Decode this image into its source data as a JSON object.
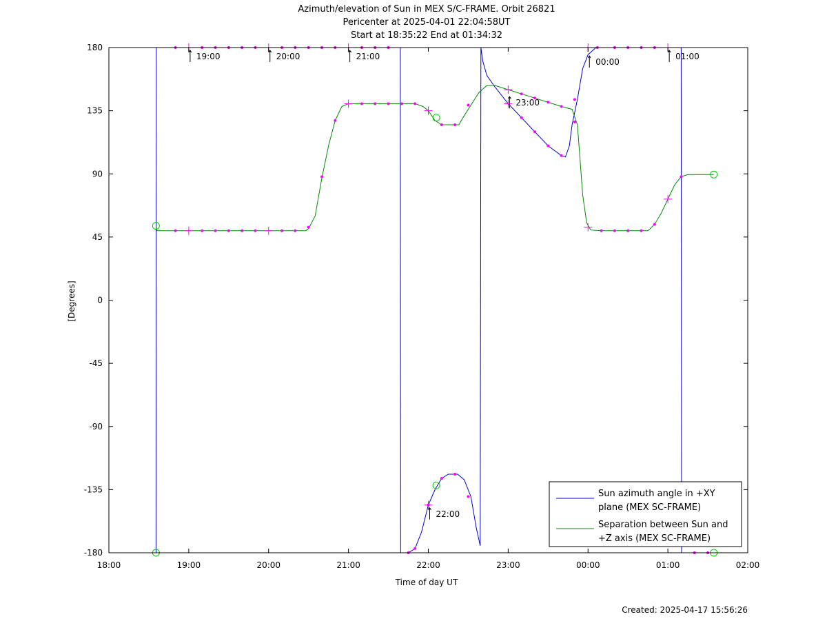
{
  "header": {
    "title_line1": "Azimuth/elevation of Sun in MEX S/C-FRAME.  Orbit 26821",
    "title_line2": "Pericenter at 2025-04-01 22:04:58UT",
    "title_line3": "Start at 18:35:22 End at 01:34:32"
  },
  "footer": {
    "created": "Created: 2025-04-17 15:56:26"
  },
  "chart_data": {
    "type": "line",
    "title": "Azimuth/elevation of Sun in MEX S/C-FRAME.  Orbit 26821",
    "xlabel": "Time of day UT",
    "ylabel": "[Degrees]",
    "x_unit": "minutes after 18:00 UT",
    "xlim": [
      0,
      480
    ],
    "ylim": [
      -180,
      180
    ],
    "x_ticks": [
      {
        "value": 0,
        "label": "18:00"
      },
      {
        "value": 60,
        "label": "19:00"
      },
      {
        "value": 120,
        "label": "20:00"
      },
      {
        "value": 180,
        "label": "21:00"
      },
      {
        "value": 240,
        "label": "22:00"
      },
      {
        "value": 300,
        "label": "23:00"
      },
      {
        "value": 360,
        "label": "00:00"
      },
      {
        "value": 420,
        "label": "01:00"
      },
      {
        "value": 480,
        "label": "02:00"
      }
    ],
    "y_ticks": [
      {
        "value": 180,
        "label": "180"
      },
      {
        "value": 135,
        "label": "135"
      },
      {
        "value": 90,
        "label": "90"
      },
      {
        "value": 45,
        "label": "45"
      },
      {
        "value": 0,
        "label": "0"
      },
      {
        "value": -45,
        "label": "-45"
      },
      {
        "value": -90,
        "label": "-90"
      },
      {
        "value": -135,
        "label": "-135"
      },
      {
        "value": -180,
        "label": "-180"
      }
    ],
    "grid": false,
    "legend_position": "bottom-right",
    "series": [
      {
        "name": "Sun azimuth angle in +XY plane (MEX SC-FRAME)",
        "legend_lines": [
          "Sun azimuth angle in +XY",
          "plane (MEX SC-FRAME)"
        ],
        "color": "#0000cc",
        "points": [
          [
            35.4,
            -180
          ],
          [
            35.6,
            180
          ],
          [
            60,
            180
          ],
          [
            120,
            180
          ],
          [
            180,
            180
          ],
          [
            219,
            180
          ],
          [
            219.2,
            -180
          ],
          [
            225,
            -180
          ],
          [
            230,
            -177
          ],
          [
            235,
            -165
          ],
          [
            240,
            -146
          ],
          [
            245,
            -135
          ],
          [
            250,
            -127
          ],
          [
            255,
            -124
          ],
          [
            262,
            -124
          ],
          [
            267,
            -128
          ],
          [
            272,
            -140
          ],
          [
            276,
            -162
          ],
          [
            279,
            -175
          ],
          [
            279.5,
            180
          ],
          [
            281,
            170
          ],
          [
            284,
            160
          ],
          [
            290,
            152
          ],
          [
            300,
            140
          ],
          [
            310,
            130
          ],
          [
            320,
            120
          ],
          [
            330,
            110
          ],
          [
            340,
            103
          ],
          [
            343,
            102
          ],
          [
            346,
            110
          ],
          [
            348,
            125
          ],
          [
            352,
            143
          ],
          [
            356,
            165
          ],
          [
            360,
            175
          ],
          [
            366,
            180
          ],
          [
            420,
            180
          ],
          [
            430,
            180
          ],
          [
            430.3,
            -180
          ],
          [
            454.5,
            -180
          ]
        ]
      },
      {
        "name": "Separation between Sun and +Z axis (MEX SC-FRAME)",
        "legend_lines": [
          "Separation between Sun and",
          "+Z axis (MEX SC-FRAME)"
        ],
        "color": "#008800",
        "points": [
          [
            35.4,
            53
          ],
          [
            36,
            49.5
          ],
          [
            50,
            49.5
          ],
          [
            100,
            49.5
          ],
          [
            148,
            49.5
          ],
          [
            150,
            51
          ],
          [
            155,
            60
          ],
          [
            160,
            87
          ],
          [
            165,
            110
          ],
          [
            170,
            128
          ],
          [
            175,
            138
          ],
          [
            180,
            140
          ],
          [
            200,
            140
          ],
          [
            230,
            140
          ],
          [
            236,
            138
          ],
          [
            240,
            135
          ],
          [
            245,
            128
          ],
          [
            250,
            125
          ],
          [
            263,
            125
          ],
          [
            266,
            130
          ],
          [
            272,
            139
          ],
          [
            278,
            148
          ],
          [
            284,
            153
          ],
          [
            290,
            153
          ],
          [
            300,
            150
          ],
          [
            310,
            147
          ],
          [
            320,
            144
          ],
          [
            330,
            141
          ],
          [
            340,
            138
          ],
          [
            348,
            136
          ],
          [
            352,
            125
          ],
          [
            354,
            100
          ],
          [
            356,
            75
          ],
          [
            359,
            55
          ],
          [
            362,
            50
          ],
          [
            370,
            49.5
          ],
          [
            390,
            49.5
          ],
          [
            405,
            49.5
          ],
          [
            410,
            54
          ],
          [
            415,
            62
          ],
          [
            420,
            72
          ],
          [
            425,
            82
          ],
          [
            430,
            88
          ],
          [
            435,
            89.5
          ],
          [
            454.5,
            89.5
          ]
        ]
      }
    ],
    "markers": {
      "circles": [
        [
          35.4,
          53
        ],
        [
          35.4,
          -180
        ],
        [
          246,
          130
        ],
        [
          246,
          -132
        ],
        [
          454.5,
          89.5
        ],
        [
          454.5,
          -180
        ]
      ],
      "dots": [
        [
          50,
          180
        ],
        [
          70,
          180
        ],
        [
          80,
          180
        ],
        [
          90,
          180
        ],
        [
          100,
          180
        ],
        [
          110,
          180
        ],
        [
          130,
          180
        ],
        [
          140,
          180
        ],
        [
          150,
          180
        ],
        [
          160,
          180
        ],
        [
          170,
          180
        ],
        [
          190,
          180
        ],
        [
          200,
          180
        ],
        [
          210,
          180
        ],
        [
          367,
          180
        ],
        [
          380,
          180
        ],
        [
          390,
          180
        ],
        [
          400,
          180
        ],
        [
          410,
          180
        ],
        [
          50,
          49.5
        ],
        [
          70,
          49.5
        ],
        [
          80,
          49.5
        ],
        [
          90,
          49.5
        ],
        [
          100,
          49.5
        ],
        [
          110,
          49.5
        ],
        [
          130,
          49.5
        ],
        [
          140,
          49.5
        ],
        [
          150,
          52
        ],
        [
          160,
          88
        ],
        [
          170,
          128
        ],
        [
          190,
          140
        ],
        [
          200,
          140
        ],
        [
          210,
          140
        ],
        [
          220,
          140
        ],
        [
          230,
          140
        ],
        [
          250,
          125
        ],
        [
          260,
          125
        ],
        [
          270,
          139
        ],
        [
          310,
          147
        ],
        [
          320,
          144
        ],
        [
          330,
          141
        ],
        [
          340,
          138
        ],
        [
          350,
          127
        ],
        [
          370,
          49.5
        ],
        [
          380,
          49.5
        ],
        [
          390,
          49.5
        ],
        [
          400,
          49.5
        ],
        [
          410,
          54
        ],
        [
          430,
          88
        ],
        [
          225,
          -180
        ],
        [
          230,
          -177
        ],
        [
          240,
          -146
        ],
        [
          250,
          -127
        ],
        [
          260,
          -124
        ],
        [
          270,
          -140
        ],
        [
          310,
          130
        ],
        [
          320,
          120
        ],
        [
          330,
          110
        ],
        [
          340,
          103
        ],
        [
          350,
          143
        ],
        [
          440,
          -180
        ],
        [
          450,
          -180
        ]
      ],
      "crosses": [
        [
          60,
          180
        ],
        [
          120,
          180
        ],
        [
          180,
          180
        ],
        [
          360,
          180
        ],
        [
          420,
          180
        ],
        [
          60,
          49.5
        ],
        [
          120,
          49.5
        ],
        [
          180,
          140
        ],
        [
          240,
          135
        ],
        [
          240,
          -146
        ],
        [
          300,
          150
        ],
        [
          300,
          140
        ],
        [
          360,
          52
        ],
        [
          420,
          72
        ]
      ]
    },
    "annotations": [
      {
        "x": 60,
        "y": 180,
        "label": "19:00"
      },
      {
        "x": 120,
        "y": 180,
        "label": "20:00"
      },
      {
        "x": 180,
        "y": 180,
        "label": "21:00"
      },
      {
        "x": 240,
        "y": -146,
        "label": "22:00"
      },
      {
        "x": 300,
        "y": 147,
        "label": "23:00"
      },
      {
        "x": 360,
        "y": 176,
        "label": "00:00"
      },
      {
        "x": 420,
        "y": 180,
        "label": "01:00"
      }
    ]
  }
}
